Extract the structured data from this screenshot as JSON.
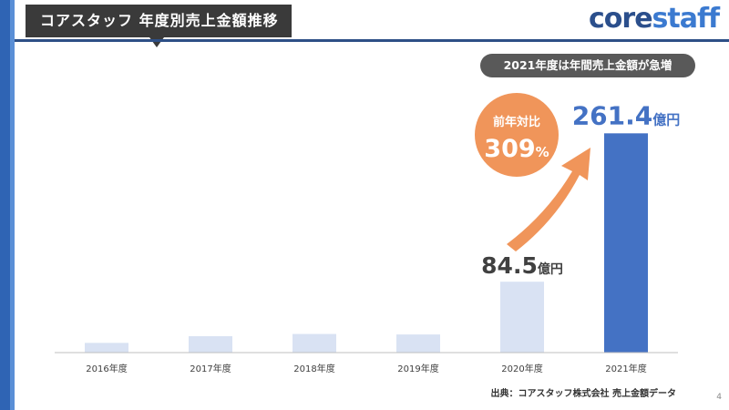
{
  "title": "コアスタッフ 年度別売上金額推移",
  "logo": {
    "part1": "core",
    "part2": "staff"
  },
  "note": "2021年度は年間売上金額が急増",
  "badge": {
    "line1": "前年対比",
    "value": "309",
    "unit": "%"
  },
  "source": "出典：コアスタッフ株式会社 売上金額データ",
  "page_number": "4",
  "colors": {
    "bar_light": "#d9e2f3",
    "bar_highlight": "#4472c4",
    "accent_orange": "#f0955a",
    "header_blue": "#2d4f86"
  },
  "chart_data": {
    "type": "bar",
    "categories": [
      "2016年度",
      "2017年度",
      "2018年度",
      "2019年度",
      "2020年度",
      "2021年度"
    ],
    "values": [
      11.6,
      19.6,
      22.2,
      21.6,
      84.5,
      261.4
    ],
    "unit": "億円",
    "data_labels": [
      {
        "index": 4,
        "value": "84.5",
        "unit": "億円"
      },
      {
        "index": 5,
        "value": "261.4",
        "unit": "億円"
      }
    ],
    "ylim": [
      0,
      290
    ],
    "highlight_index": 5,
    "grid": false
  }
}
